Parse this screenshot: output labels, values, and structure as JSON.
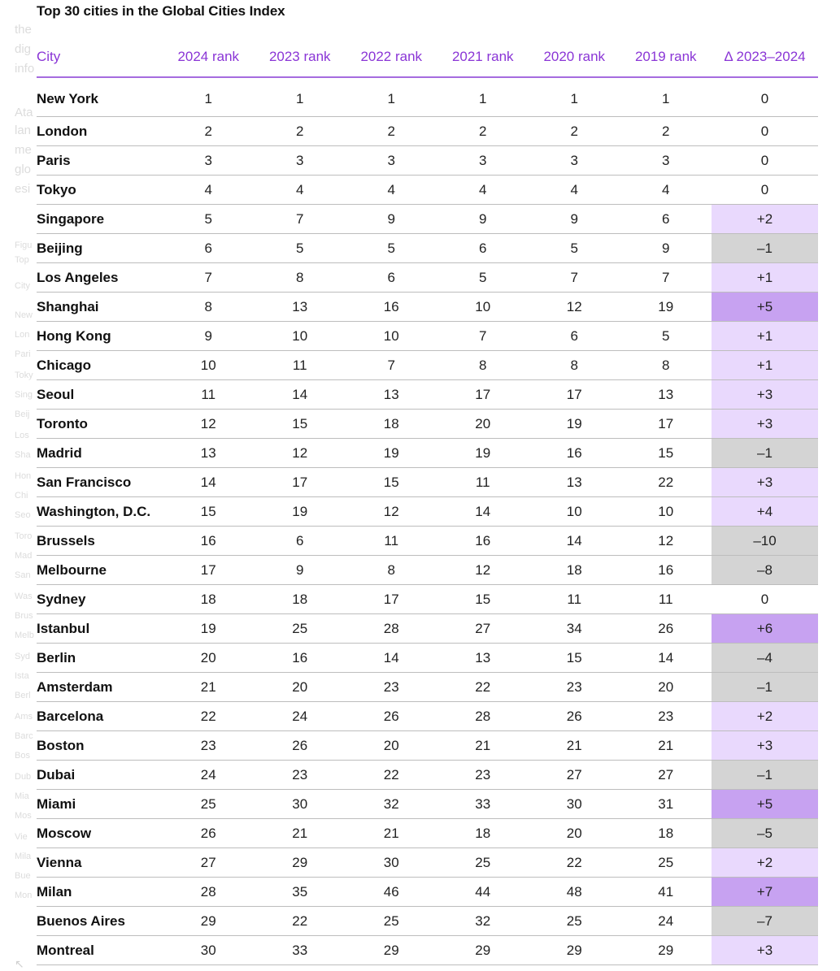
{
  "title": "Top 30 cities in the Global Cities Index",
  "table": {
    "headers": [
      "City",
      "2024 rank",
      "2023 rank",
      "2022 rank",
      "2021 rank",
      "2020 rank",
      "2019 rank",
      "Δ 2023–2024"
    ],
    "rows": [
      {
        "city": "New York",
        "ranks": [
          "1",
          "1",
          "1",
          "1",
          "1",
          "1"
        ],
        "delta": "0"
      },
      {
        "city": "London",
        "ranks": [
          "2",
          "2",
          "2",
          "2",
          "2",
          "2"
        ],
        "delta": "0"
      },
      {
        "city": "Paris",
        "ranks": [
          "3",
          "3",
          "3",
          "3",
          "3",
          "3"
        ],
        "delta": "0"
      },
      {
        "city": "Tokyo",
        "ranks": [
          "4",
          "4",
          "4",
          "4",
          "4",
          "4"
        ],
        "delta": "0"
      },
      {
        "city": "Singapore",
        "ranks": [
          "5",
          "7",
          "9",
          "9",
          "9",
          "6"
        ],
        "delta": "+2"
      },
      {
        "city": "Beijing",
        "ranks": [
          "6",
          "5",
          "5",
          "6",
          "5",
          "9"
        ],
        "delta": "–1"
      },
      {
        "city": "Los Angeles",
        "ranks": [
          "7",
          "8",
          "6",
          "5",
          "7",
          "7"
        ],
        "delta": "+1"
      },
      {
        "city": "Shanghai",
        "ranks": [
          "8",
          "13",
          "16",
          "10",
          "12",
          "19"
        ],
        "delta": "+5"
      },
      {
        "city": "Hong Kong",
        "ranks": [
          "9",
          "10",
          "10",
          "7",
          "6",
          "5"
        ],
        "delta": "+1"
      },
      {
        "city": "Chicago",
        "ranks": [
          "10",
          "11",
          "7",
          "8",
          "8",
          "8"
        ],
        "delta": "+1"
      },
      {
        "city": "Seoul",
        "ranks": [
          "11",
          "14",
          "13",
          "17",
          "17",
          "13"
        ],
        "delta": "+3"
      },
      {
        "city": "Toronto",
        "ranks": [
          "12",
          "15",
          "18",
          "20",
          "19",
          "17"
        ],
        "delta": "+3"
      },
      {
        "city": "Madrid",
        "ranks": [
          "13",
          "12",
          "19",
          "19",
          "16",
          "15"
        ],
        "delta": "–1"
      },
      {
        "city": "San Francisco",
        "ranks": [
          "14",
          "17",
          "15",
          "11",
          "13",
          "22"
        ],
        "delta": "+3"
      },
      {
        "city": "Washington, D.C.",
        "ranks": [
          "15",
          "19",
          "12",
          "14",
          "10",
          "10"
        ],
        "delta": "+4"
      },
      {
        "city": "Brussels",
        "ranks": [
          "16",
          "6",
          "11",
          "16",
          "14",
          "12"
        ],
        "delta": "–10"
      },
      {
        "city": "Melbourne",
        "ranks": [
          "17",
          "9",
          "8",
          "12",
          "18",
          "16"
        ],
        "delta": "–8"
      },
      {
        "city": "Sydney",
        "ranks": [
          "18",
          "18",
          "17",
          "15",
          "11",
          "11"
        ],
        "delta": "0"
      },
      {
        "city": "Istanbul",
        "ranks": [
          "19",
          "25",
          "28",
          "27",
          "34",
          "26"
        ],
        "delta": "+6"
      },
      {
        "city": "Berlin",
        "ranks": [
          "20",
          "16",
          "14",
          "13",
          "15",
          "14"
        ],
        "delta": "–4"
      },
      {
        "city": "Amsterdam",
        "ranks": [
          "21",
          "20",
          "23",
          "22",
          "23",
          "20"
        ],
        "delta": "–1"
      },
      {
        "city": "Barcelona",
        "ranks": [
          "22",
          "24",
          "26",
          "28",
          "26",
          "23"
        ],
        "delta": "+2"
      },
      {
        "city": "Boston",
        "ranks": [
          "23",
          "26",
          "20",
          "21",
          "21",
          "21"
        ],
        "delta": "+3"
      },
      {
        "city": "Dubai",
        "ranks": [
          "24",
          "23",
          "22",
          "23",
          "27",
          "27"
        ],
        "delta": "–1"
      },
      {
        "city": "Miami",
        "ranks": [
          "25",
          "30",
          "32",
          "33",
          "30",
          "31"
        ],
        "delta": "+5"
      },
      {
        "city": "Moscow",
        "ranks": [
          "26",
          "21",
          "21",
          "18",
          "20",
          "18"
        ],
        "delta": "–5"
      },
      {
        "city": "Vienna",
        "ranks": [
          "27",
          "29",
          "30",
          "25",
          "22",
          "25"
        ],
        "delta": "+2"
      },
      {
        "city": "Milan",
        "ranks": [
          "28",
          "35",
          "46",
          "44",
          "48",
          "41"
        ],
        "delta": "+7"
      },
      {
        "city": "Buenos Aires",
        "ranks": [
          "29",
          "22",
          "25",
          "32",
          "25",
          "24"
        ],
        "delta": "–7"
      },
      {
        "city": "Montreal",
        "ranks": [
          "30",
          "33",
          "29",
          "29",
          "29",
          "29"
        ],
        "delta": "+3"
      }
    ]
  },
  "colors": {
    "header_text": "#8a35d6",
    "header_rule": "#a56bdf",
    "delta_positive_small": "#e9d9fd",
    "delta_positive_large": "#c7a2f1",
    "delta_negative": "#d4d4d4"
  }
}
